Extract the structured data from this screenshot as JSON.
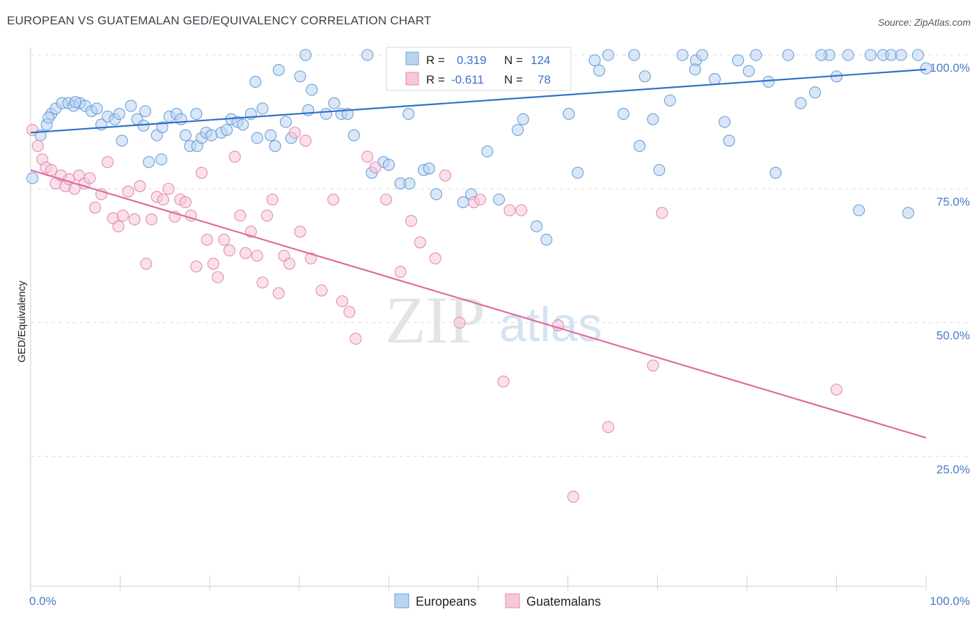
{
  "header": {
    "title": "EUROPEAN VS GUATEMALAN GED/EQUIVALENCY CORRELATION CHART",
    "source": "Source: ZipAtlas.com"
  },
  "watermark": {
    "zip": "ZIP",
    "atlas": "atlas"
  },
  "colors": {
    "europeans": "#6a9fd8",
    "europeans_fill": "#b9d3f0",
    "europeans_line": "#2f6fc9",
    "guatemalans": "#e58ab0",
    "guatemalans_fill": "#f6c7d8",
    "guatemalans_line": "#e0699a",
    "grid": "#dcdcdc",
    "tick_label": "#4a78c4"
  },
  "legend": {
    "rows": [
      {
        "r_label": "R =",
        "r_value": "0.319",
        "n_label": "N =",
        "n_value": "124"
      },
      {
        "r_label": "R =",
        "r_value": "-0.611",
        "n_label": "N =",
        "n_value": "78"
      }
    ]
  },
  "bottom_legend": {
    "items": [
      "Europeans",
      "Guatemalans"
    ]
  },
  "chart_data": {
    "type": "scatter",
    "xlabel": "",
    "ylabel": "GED/Equivalency",
    "xlim": [
      0,
      100
    ],
    "ylim": [
      0,
      100
    ],
    "x_tick_labels": [
      "0.0%",
      "100.0%"
    ],
    "y_tick_labels": [
      "100.0%",
      "75.0%",
      "50.0%",
      "25.0%"
    ],
    "y_ticks": [
      100,
      75,
      50,
      25
    ],
    "grid": true,
    "legend_position": "top-center",
    "series": [
      {
        "name": "Europeans",
        "r": 0.319,
        "n": 124,
        "trend": [
          [
            0,
            85.5
          ],
          [
            100,
            97.3
          ]
        ],
        "points": [
          [
            0.2,
            77
          ],
          [
            1.1,
            85
          ],
          [
            1.8,
            87
          ],
          [
            2.3,
            89
          ],
          [
            2.8,
            90
          ],
          [
            3.5,
            91
          ],
          [
            4.2,
            91
          ],
          [
            4.8,
            90.5
          ],
          [
            5.5,
            91
          ],
          [
            6.1,
            90.5
          ],
          [
            6.8,
            89.5
          ],
          [
            7.4,
            90
          ],
          [
            7.9,
            87
          ],
          [
            8.6,
            88.5
          ],
          [
            9.4,
            88
          ],
          [
            9.9,
            89
          ],
          [
            10.2,
            84
          ],
          [
            11.2,
            90.5
          ],
          [
            11.9,
            88
          ],
          [
            12.8,
            89.5
          ],
          [
            13.2,
            80
          ],
          [
            14.1,
            85
          ],
          [
            14.7,
            86.5
          ],
          [
            15.5,
            88.5
          ],
          [
            16.3,
            89
          ],
          [
            16.8,
            88
          ],
          [
            17.3,
            85
          ],
          [
            17.8,
            83
          ],
          [
            18.6,
            83
          ],
          [
            19.1,
            84.5
          ],
          [
            19.6,
            85.5
          ],
          [
            20.2,
            85
          ],
          [
            21.3,
            85.5
          ],
          [
            21.9,
            86
          ],
          [
            22.4,
            88
          ],
          [
            23.1,
            87.5
          ],
          [
            23.7,
            87
          ],
          [
            24.6,
            89
          ],
          [
            25.3,
            84.5
          ],
          [
            25.9,
            90
          ],
          [
            26.8,
            85
          ],
          [
            27.3,
            83
          ],
          [
            28.5,
            87.5
          ],
          [
            29.1,
            84.5
          ],
          [
            30.1,
            96
          ],
          [
            31.4,
            93.5
          ],
          [
            33.0,
            89
          ],
          [
            33.9,
            91
          ],
          [
            34.7,
            89
          ],
          [
            35.4,
            89
          ],
          [
            36.1,
            85
          ],
          [
            37.6,
            100
          ],
          [
            38.1,
            78
          ],
          [
            39.4,
            80
          ],
          [
            40.0,
            79.5
          ],
          [
            41.3,
            76
          ],
          [
            42.3,
            76
          ],
          [
            43.9,
            78.5
          ],
          [
            44.5,
            78.8
          ],
          [
            45.3,
            74
          ],
          [
            46.4,
            98
          ],
          [
            47.2,
            100
          ],
          [
            48.3,
            72.5
          ],
          [
            49.2,
            74
          ],
          [
            49.7,
            100
          ],
          [
            51.0,
            82
          ],
          [
            52.3,
            73
          ],
          [
            53.5,
            100
          ],
          [
            55.0,
            88
          ],
          [
            56.0,
            100
          ],
          [
            56.5,
            68
          ],
          [
            57.6,
            65.5
          ],
          [
            59.0,
            98
          ],
          [
            60.1,
            89
          ],
          [
            61.1,
            78
          ],
          [
            63.0,
            99
          ],
          [
            64.5,
            100
          ],
          [
            66.2,
            89
          ],
          [
            67.4,
            100
          ],
          [
            68.0,
            83
          ],
          [
            68.6,
            96
          ],
          [
            69.5,
            88
          ],
          [
            70.2,
            78.5
          ],
          [
            71.4,
            91.5
          ],
          [
            72.8,
            100
          ],
          [
            74.3,
            99
          ],
          [
            75.0,
            100
          ],
          [
            76.4,
            95.5
          ],
          [
            77.5,
            87.5
          ],
          [
            78.0,
            84
          ],
          [
            79.0,
            99
          ],
          [
            80.2,
            97
          ],
          [
            81.0,
            100
          ],
          [
            82.4,
            95
          ],
          [
            83.2,
            78
          ],
          [
            84.6,
            100
          ],
          [
            86.0,
            91
          ],
          [
            87.6,
            93
          ],
          [
            89.2,
            100
          ],
          [
            90.0,
            96
          ],
          [
            91.3,
            100
          ],
          [
            92.5,
            71
          ],
          [
            93.8,
            100
          ],
          [
            95.2,
            100
          ],
          [
            96.1,
            100
          ],
          [
            97.2,
            100
          ],
          [
            98.0,
            70.5
          ],
          [
            99.1,
            100
          ],
          [
            100.0,
            97.5
          ],
          [
            5.0,
            91.2
          ],
          [
            27.7,
            97.2
          ],
          [
            42.2,
            89
          ],
          [
            18.5,
            89
          ],
          [
            2.0,
            88.3
          ],
          [
            31.0,
            89.7
          ],
          [
            14.6,
            80.5
          ],
          [
            25.1,
            95
          ],
          [
            54.4,
            86
          ],
          [
            63.5,
            97.1
          ],
          [
            47.9,
            96.8
          ],
          [
            74.2,
            97.3
          ],
          [
            88.3,
            100
          ],
          [
            30.7,
            100
          ],
          [
            12.6,
            86.8
          ]
        ]
      },
      {
        "name": "Guatemalans",
        "r": -0.611,
        "n": 78,
        "trend": [
          [
            0,
            78.5
          ],
          [
            100,
            28.5
          ]
        ],
        "points": [
          [
            0.2,
            86
          ],
          [
            0.8,
            83
          ],
          [
            1.3,
            80.5
          ],
          [
            1.7,
            79
          ],
          [
            2.3,
            78.5
          ],
          [
            2.8,
            76
          ],
          [
            3.4,
            77.5
          ],
          [
            3.9,
            75.5
          ],
          [
            4.3,
            76.8
          ],
          [
            4.9,
            75
          ],
          [
            5.4,
            77.5
          ],
          [
            6.0,
            76
          ],
          [
            6.6,
            77
          ],
          [
            7.2,
            71.5
          ],
          [
            7.9,
            74
          ],
          [
            8.6,
            80
          ],
          [
            9.2,
            69.5
          ],
          [
            9.8,
            68
          ],
          [
            10.3,
            70
          ],
          [
            10.9,
            74.5
          ],
          [
            11.6,
            69.3
          ],
          [
            12.2,
            75.5
          ],
          [
            12.9,
            61
          ],
          [
            13.5,
            69.3
          ],
          [
            14.1,
            73.5
          ],
          [
            14.8,
            73
          ],
          [
            15.4,
            75
          ],
          [
            16.1,
            69.8
          ],
          [
            16.7,
            73
          ],
          [
            17.3,
            72.5
          ],
          [
            17.9,
            70
          ],
          [
            18.5,
            60.5
          ],
          [
            19.1,
            78
          ],
          [
            19.7,
            65.5
          ],
          [
            20.4,
            61
          ],
          [
            20.9,
            58.5
          ],
          [
            21.6,
            65.5
          ],
          [
            22.2,
            63.5
          ],
          [
            22.8,
            81
          ],
          [
            23.4,
            70
          ],
          [
            24.0,
            63
          ],
          [
            24.6,
            67
          ],
          [
            25.3,
            62.5
          ],
          [
            25.9,
            57.5
          ],
          [
            26.4,
            70
          ],
          [
            27.0,
            73
          ],
          [
            27.7,
            55.5
          ],
          [
            28.3,
            62.5
          ],
          [
            28.9,
            61
          ],
          [
            29.5,
            85.5
          ],
          [
            30.1,
            67
          ],
          [
            30.7,
            84
          ],
          [
            31.3,
            62
          ],
          [
            32.5,
            56
          ],
          [
            33.8,
            73
          ],
          [
            34.8,
            54
          ],
          [
            35.6,
            52
          ],
          [
            36.3,
            47
          ],
          [
            37.6,
            81
          ],
          [
            38.5,
            79
          ],
          [
            39.7,
            73
          ],
          [
            41.3,
            59.5
          ],
          [
            42.5,
            69
          ],
          [
            43.5,
            65
          ],
          [
            45.2,
            62
          ],
          [
            46.3,
            77.5
          ],
          [
            47.9,
            50
          ],
          [
            49.5,
            72.5
          ],
          [
            50.2,
            73
          ],
          [
            52.8,
            39
          ],
          [
            53.5,
            71
          ],
          [
            54.8,
            71
          ],
          [
            58.9,
            49.5
          ],
          [
            60.6,
            17.5
          ],
          [
            64.5,
            30.5
          ],
          [
            69.5,
            42
          ],
          [
            70.5,
            70.5
          ],
          [
            90.0,
            37.5
          ]
        ]
      }
    ]
  }
}
